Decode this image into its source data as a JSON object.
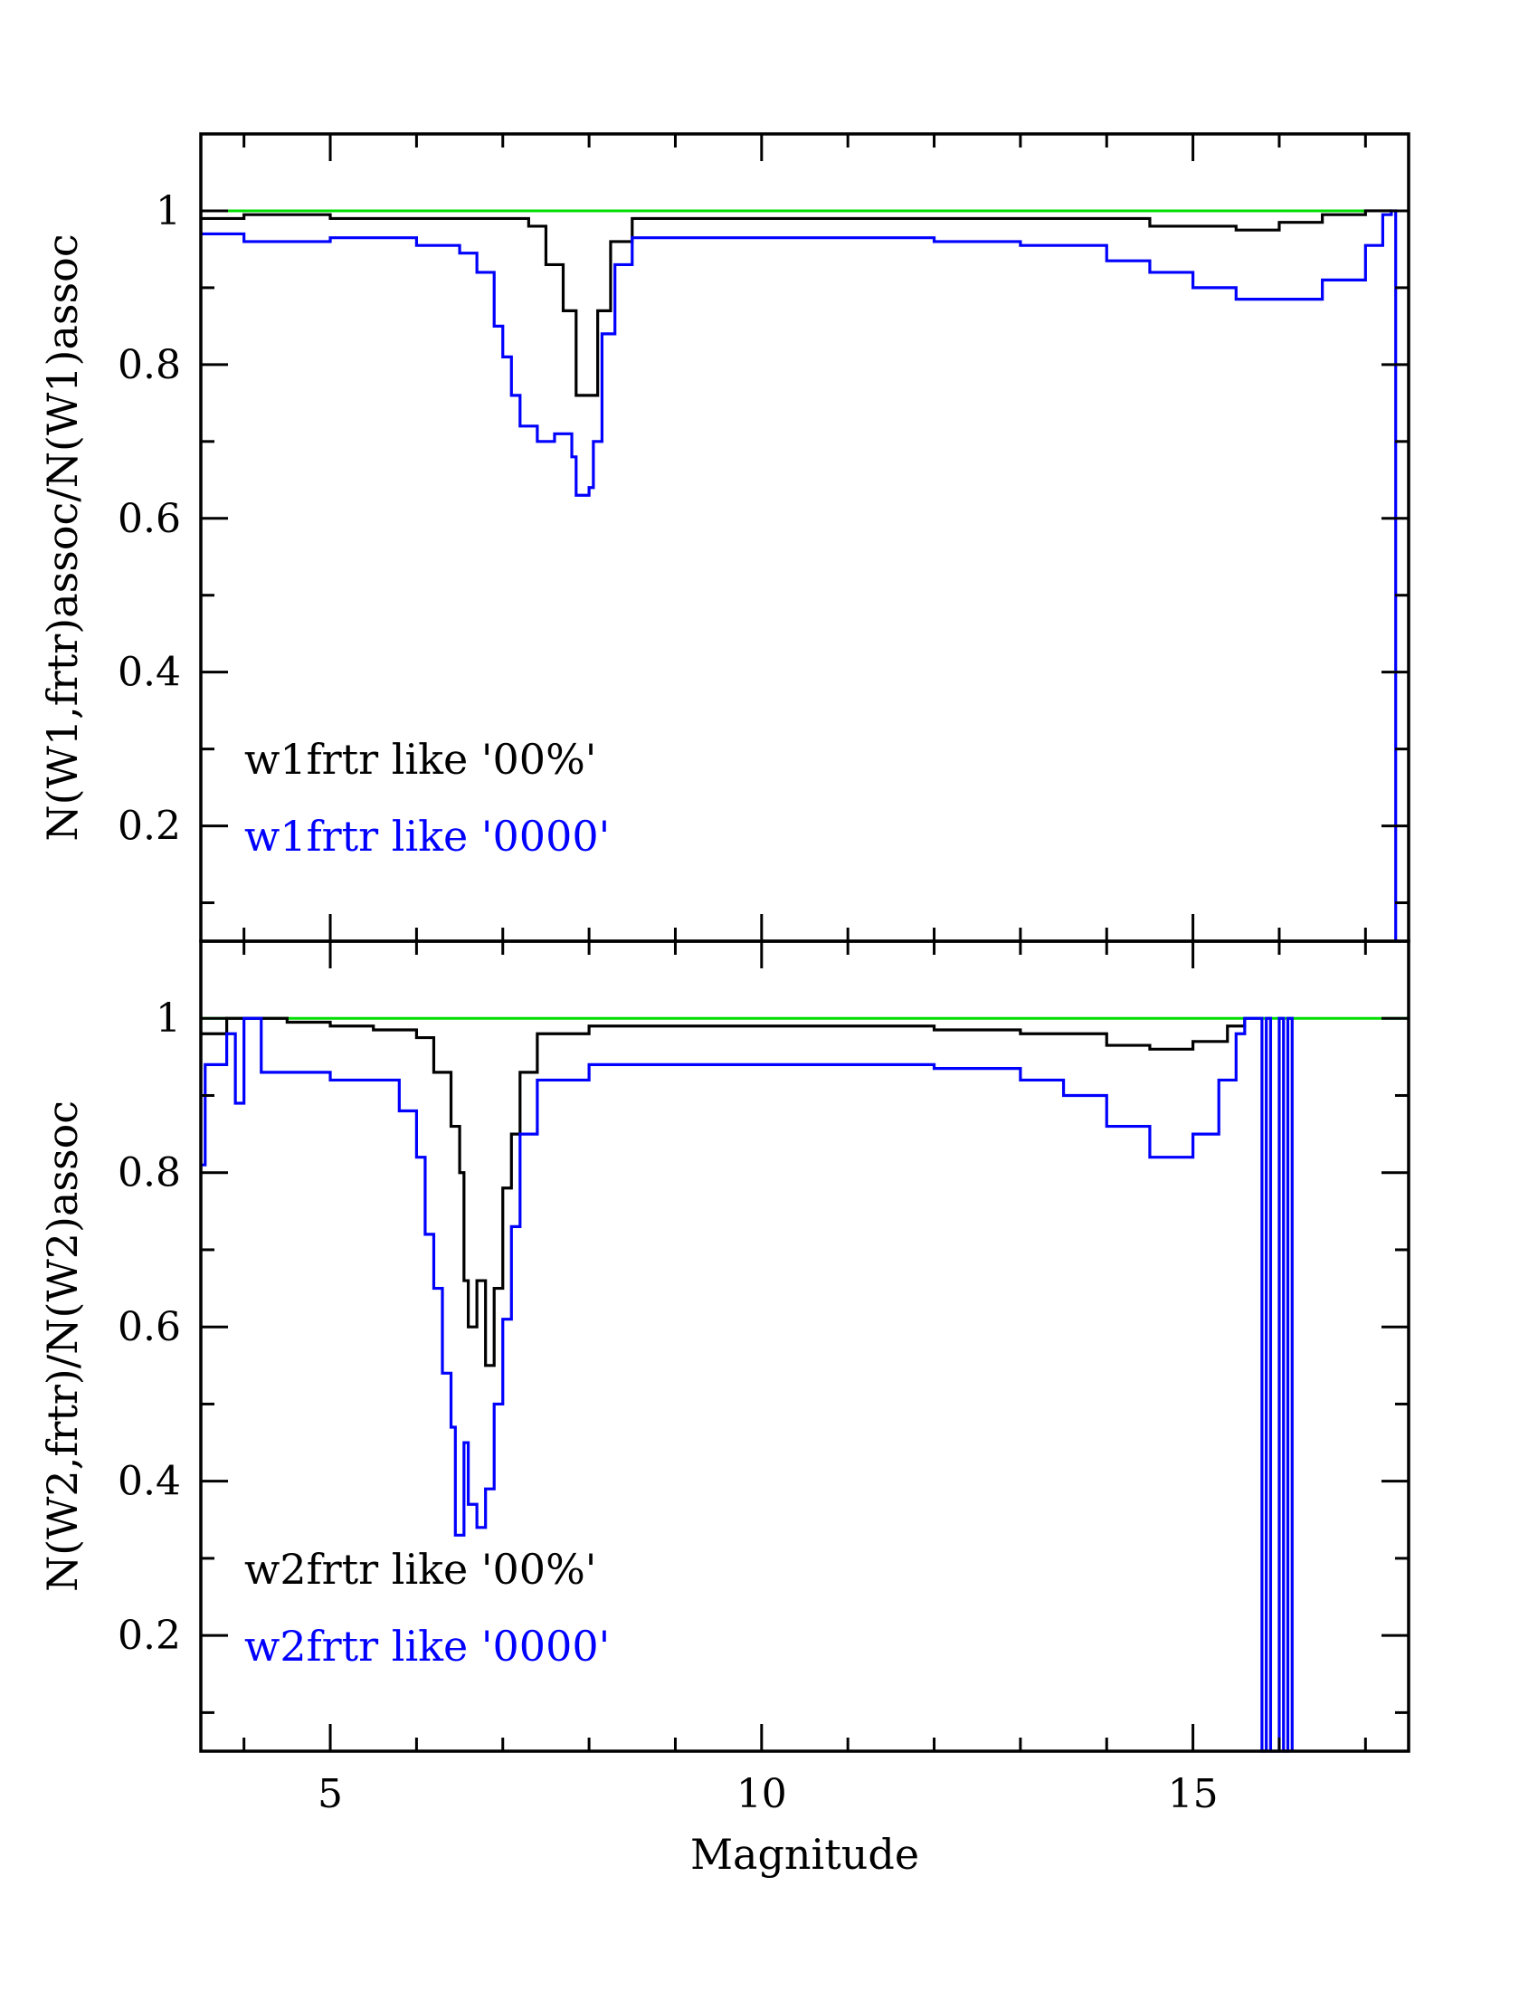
{
  "chart_data": [
    {
      "type": "line",
      "step": true,
      "xlim": [
        3.5,
        17.5
      ],
      "ylim": [
        0.05,
        1.1
      ],
      "xticks": [
        5,
        10,
        15
      ],
      "xtick_labels": [
        "",
        "",
        ""
      ],
      "yticks": [
        0.2,
        0.4,
        0.6,
        0.8,
        1
      ],
      "ytick_labels": [
        "0.2",
        "0.4",
        "0.6",
        "0.8",
        "1"
      ],
      "xlabel": "",
      "ylabel": "N(W1,frtr)assoc/N(W1)assoc",
      "reference_line": {
        "y": 1.0,
        "color": "#00dd00"
      },
      "legend": [
        {
          "text": "w1frtr like '00%'",
          "color": "#000000"
        },
        {
          "text": "w1frtr like '0000'",
          "color": "#0000ff"
        }
      ],
      "series": [
        {
          "color": "#000000",
          "points": [
            [
              3.5,
              0.99
            ],
            [
              4.0,
              0.995
            ],
            [
              5.0,
              0.99
            ],
            [
              6.0,
              0.99
            ],
            [
              7.0,
              0.99
            ],
            [
              7.3,
              0.98
            ],
            [
              7.5,
              0.93
            ],
            [
              7.7,
              0.87
            ],
            [
              7.85,
              0.76
            ],
            [
              8.0,
              0.76
            ],
            [
              8.1,
              0.87
            ],
            [
              8.25,
              0.96
            ],
            [
              8.5,
              0.99
            ],
            [
              10.0,
              0.99
            ],
            [
              13.0,
              0.99
            ],
            [
              14.5,
              0.98
            ],
            [
              15.5,
              0.975
            ],
            [
              16.0,
              0.985
            ],
            [
              16.5,
              0.995
            ],
            [
              17.0,
              1.0
            ],
            [
              17.3,
              1.0
            ]
          ]
        },
        {
          "color": "#0000ff",
          "points": [
            [
              3.5,
              0.97
            ],
            [
              4.0,
              0.96
            ],
            [
              5.0,
              0.965
            ],
            [
              6.0,
              0.955
            ],
            [
              6.5,
              0.945
            ],
            [
              6.7,
              0.92
            ],
            [
              6.9,
              0.85
            ],
            [
              7.0,
              0.81
            ],
            [
              7.1,
              0.76
            ],
            [
              7.2,
              0.72
            ],
            [
              7.4,
              0.7
            ],
            [
              7.6,
              0.71
            ],
            [
              7.8,
              0.68
            ],
            [
              7.85,
              0.63
            ],
            [
              8.0,
              0.64
            ],
            [
              8.05,
              0.7
            ],
            [
              8.15,
              0.84
            ],
            [
              8.3,
              0.93
            ],
            [
              8.5,
              0.965
            ],
            [
              10.0,
              0.965
            ],
            [
              12.0,
              0.96
            ],
            [
              13.0,
              0.955
            ],
            [
              14.0,
              0.935
            ],
            [
              14.5,
              0.92
            ],
            [
              15.0,
              0.9
            ],
            [
              15.5,
              0.885
            ],
            [
              16.0,
              0.885
            ],
            [
              16.5,
              0.91
            ],
            [
              17.0,
              0.955
            ],
            [
              17.2,
              0.995
            ],
            [
              17.3,
              1.0
            ],
            [
              17.35,
              0.05
            ]
          ]
        }
      ]
    },
    {
      "type": "line",
      "step": true,
      "xlim": [
        3.5,
        17.5
      ],
      "ylim": [
        0.05,
        1.1
      ],
      "xticks": [
        5,
        10,
        15
      ],
      "xtick_labels": [
        "5",
        "10",
        "15"
      ],
      "yticks": [
        0.2,
        0.4,
        0.6,
        0.8,
        1
      ],
      "ytick_labels": [
        "0.2",
        "0.4",
        "0.6",
        "0.8",
        "1"
      ],
      "xlabel": "Magnitude",
      "ylabel": "N(W2,frtr)/N(W2)assoc",
      "reference_line": {
        "y": 1.0,
        "color": "#00dd00"
      },
      "legend": [
        {
          "text": "w2frtr like '00%'",
          "color": "#000000"
        },
        {
          "text": "w2frtr like '0000'",
          "color": "#0000ff"
        }
      ],
      "series": [
        {
          "color": "#000000",
          "points": [
            [
              3.5,
              0.98
            ],
            [
              3.8,
              1.0
            ],
            [
              4.5,
              0.995
            ],
            [
              5.0,
              0.99
            ],
            [
              5.5,
              0.985
            ],
            [
              6.0,
              0.975
            ],
            [
              6.2,
              0.93
            ],
            [
              6.4,
              0.86
            ],
            [
              6.5,
              0.8
            ],
            [
              6.55,
              0.66
            ],
            [
              6.6,
              0.6
            ],
            [
              6.7,
              0.66
            ],
            [
              6.8,
              0.55
            ],
            [
              6.9,
              0.65
            ],
            [
              7.0,
              0.78
            ],
            [
              7.1,
              0.85
            ],
            [
              7.2,
              0.93
            ],
            [
              7.4,
              0.98
            ],
            [
              8.0,
              0.99
            ],
            [
              10.0,
              0.99
            ],
            [
              12.0,
              0.985
            ],
            [
              13.0,
              0.98
            ],
            [
              14.0,
              0.965
            ],
            [
              14.5,
              0.96
            ],
            [
              15.0,
              0.97
            ],
            [
              15.4,
              0.99
            ],
            [
              15.6,
              1.0
            ]
          ]
        },
        {
          "color": "#0000ff",
          "points": [
            [
              3.5,
              0.81
            ],
            [
              3.55,
              0.94
            ],
            [
              3.8,
              0.98
            ],
            [
              3.9,
              0.89
            ],
            [
              4.0,
              1.0
            ],
            [
              4.2,
              0.93
            ],
            [
              5.0,
              0.92
            ],
            [
              5.5,
              0.92
            ],
            [
              5.8,
              0.88
            ],
            [
              6.0,
              0.82
            ],
            [
              6.1,
              0.72
            ],
            [
              6.2,
              0.65
            ],
            [
              6.3,
              0.54
            ],
            [
              6.4,
              0.47
            ],
            [
              6.45,
              0.33
            ],
            [
              6.55,
              0.45
            ],
            [
              6.6,
              0.37
            ],
            [
              6.7,
              0.34
            ],
            [
              6.8,
              0.39
            ],
            [
              6.9,
              0.5
            ],
            [
              7.0,
              0.61
            ],
            [
              7.1,
              0.73
            ],
            [
              7.2,
              0.85
            ],
            [
              7.4,
              0.92
            ],
            [
              8.0,
              0.94
            ],
            [
              10.0,
              0.94
            ],
            [
              12.0,
              0.935
            ],
            [
              13.0,
              0.92
            ],
            [
              13.5,
              0.9
            ],
            [
              14.0,
              0.86
            ],
            [
              14.5,
              0.82
            ],
            [
              15.0,
              0.85
            ],
            [
              15.3,
              0.92
            ],
            [
              15.5,
              0.98
            ],
            [
              15.6,
              1.0
            ],
            [
              15.8,
              0.05
            ],
            [
              15.85,
              1.0
            ],
            [
              15.9,
              0.05
            ],
            [
              16.0,
              1.0
            ],
            [
              16.05,
              0.05
            ],
            [
              16.1,
              1.0
            ],
            [
              16.15,
              0.05
            ]
          ]
        }
      ]
    }
  ]
}
